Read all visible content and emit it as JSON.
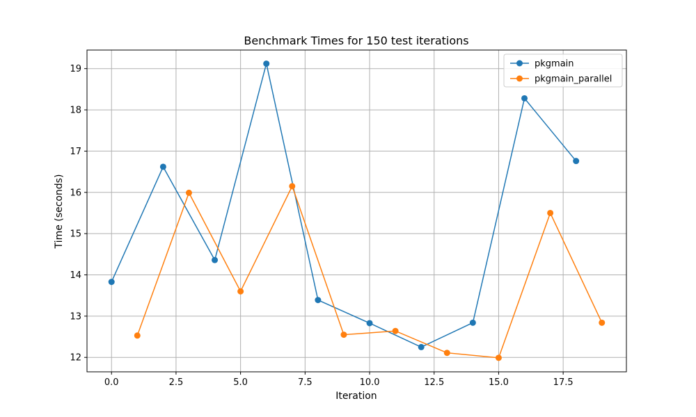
{
  "chart_data": {
    "type": "line",
    "title": "Benchmark Times for 150 test iterations",
    "xlabel": "Iteration",
    "ylabel": "Time (seconds)",
    "xlim": [
      -0.95,
      19.95
    ],
    "ylim": [
      11.65,
      19.45
    ],
    "xticks": [
      0.0,
      2.5,
      5.0,
      7.5,
      10.0,
      12.5,
      15.0,
      17.5
    ],
    "xtick_labels": [
      "0.0",
      "2.5",
      "5.0",
      "7.5",
      "10.0",
      "12.5",
      "15.0",
      "17.5"
    ],
    "yticks": [
      12,
      13,
      14,
      15,
      16,
      17,
      18,
      19
    ],
    "ytick_labels": [
      "12",
      "13",
      "14",
      "15",
      "16",
      "17",
      "18",
      "19"
    ],
    "grid": true,
    "legend_position": "top-right",
    "series": [
      {
        "name": "pkgmain",
        "color": "#1f77b4",
        "x": [
          0,
          2,
          4,
          6,
          8,
          10,
          12,
          14,
          16,
          18
        ],
        "y": [
          13.83,
          16.62,
          14.36,
          19.12,
          13.39,
          12.83,
          12.25,
          12.84,
          18.28,
          16.76
        ]
      },
      {
        "name": "pkgmain_parallel",
        "color": "#ff7f0e",
        "x": [
          1,
          3,
          5,
          7,
          9,
          11,
          13,
          15,
          17,
          19
        ],
        "y": [
          12.53,
          15.99,
          13.6,
          16.15,
          12.55,
          12.64,
          12.11,
          11.99,
          15.5,
          12.84
        ]
      }
    ]
  }
}
